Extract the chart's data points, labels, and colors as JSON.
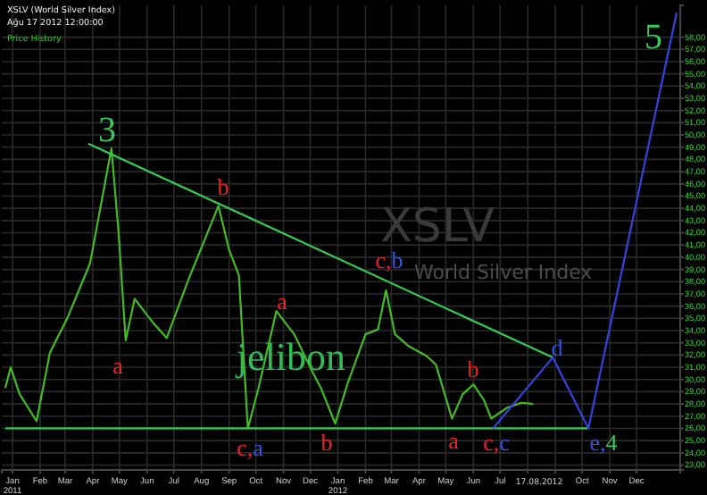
{
  "chart_data": {
    "type": "line",
    "title": "XSLV (World Silver Index)",
    "subtitle": "Ağu 17 2012 12:00:00",
    "annotations": [
      "Price History",
      "XSLV",
      "World Silver Index",
      "jelibon",
      "17.08.2012",
      "3",
      "b",
      "a",
      "c,a",
      "a",
      "b",
      "c,b",
      "a",
      "b",
      "c,c",
      "d",
      "e,4",
      "5"
    ],
    "series": [
      {
        "color": "#44bb22",
        "x": [
          "2010-12-24",
          "2010-12-30",
          "2011-01-09",
          "2011-01-28",
          "2011-02-12",
          "2011-03-04",
          "2011-03-29",
          "2011-04-22",
          "2011-04-30",
          "2011-05-08",
          "2011-05-18",
          "2011-06-07",
          "2011-06-23",
          "2011-07-17",
          "2011-08-20",
          "2011-09-01",
          "2011-09-12",
          "2011-09-22",
          "2011-10-04",
          "2011-10-24",
          "2011-11-13",
          "2011-12-03",
          "2011-12-13",
          "2011-12-29",
          "2012-01-12",
          "2012-02-01",
          "2012-02-15",
          "2012-02-24",
          "2012-03-05",
          "2012-03-21",
          "2012-04-10",
          "2012-04-20",
          "2012-05-08",
          "2012-05-20",
          "2012-06-01",
          "2012-06-13",
          "2012-06-21",
          "2012-07-09",
          "2012-07-25",
          "2012-08-07"
        ],
        "values": [
          29.3,
          31.0,
          28.8,
          26.6,
          32.2,
          35.1,
          39.5,
          48.9,
          42.0,
          33.2,
          36.6,
          34.7,
          33.4,
          38.1,
          44.2,
          40.6,
          38.5,
          26.0,
          29.3,
          35.6,
          33.7,
          30.7,
          29.3,
          26.4,
          29.7,
          33.7,
          34.1,
          37.3,
          33.7,
          32.7,
          31.9,
          31.2,
          26.8,
          28.8,
          29.6,
          28.3,
          26.8,
          27.7,
          28.1,
          28.0
        ]
      },
      {
        "color": "#33cc55",
        "x": [
          "2011-03-27",
          "2012-08-29"
        ],
        "values": [
          49.3,
          31.8
        ]
      },
      {
        "color": "#33cc55",
        "x": [
          "2010-12-24",
          "2012-10-08"
        ],
        "values": [
          26,
          26
        ]
      },
      {
        "color": "#3344dd",
        "x": [
          "2012-06-23",
          "2012-08-29",
          "2012-10-08",
          "2013-01-15"
        ],
        "values": [
          26,
          31.8,
          26,
          60
        ]
      }
    ],
    "xlim": [
      "2010-12-20",
      "2013-01-19"
    ],
    "xticks": [
      {
        "value": "2011-01-01",
        "label": "Jan\n2011"
      },
      {
        "value": "2011-02-01",
        "label": "Feb"
      },
      {
        "value": "2011-03-01",
        "label": "Mar"
      },
      {
        "value": "2011-04-01",
        "label": "Apr"
      },
      {
        "value": "2011-05-01",
        "label": "May"
      },
      {
        "value": "2011-06-01",
        "label": "Jun"
      },
      {
        "value": "2011-07-01",
        "label": "Jul"
      },
      {
        "value": "2011-08-01",
        "label": "Aug"
      },
      {
        "value": "2011-09-01",
        "label": "Sep"
      },
      {
        "value": "2011-10-01",
        "label": "Oct"
      },
      {
        "value": "2011-11-01",
        "label": "Nov"
      },
      {
        "value": "2011-12-01",
        "label": "Dec"
      },
      {
        "value": "2012-01-01",
        "label": "Jan\n2012"
      },
      {
        "value": "2012-02-01",
        "label": "Feb"
      },
      {
        "value": "2012-03-01",
        "label": "Mar"
      },
      {
        "value": "2012-04-01",
        "label": "Apr"
      },
      {
        "value": "2012-05-01",
        "label": "May"
      },
      {
        "value": "2012-06-01",
        "label": "Jun"
      },
      {
        "value": "2012-07-01",
        "label": "Jul"
      },
      {
        "value": "2012-08-01",
        "label": null
      },
      {
        "value": "2012-09-01",
        "label": null
      },
      {
        "value": "2012-10-01",
        "label": "Oct"
      },
      {
        "value": "2012-11-01",
        "label": "Nov"
      },
      {
        "value": "2012-12-01",
        "label": "Dec"
      }
    ],
    "ylim": [
      22.6,
      60.6
    ],
    "yticks": [
      {
        "value": 23,
        "label": "23,00"
      },
      {
        "value": 24,
        "label": "24,00"
      },
      {
        "value": 25,
        "label": "25,00"
      },
      {
        "value": 26,
        "label": "26,00"
      },
      {
        "value": 27,
        "label": "27,00"
      },
      {
        "value": 28,
        "label": "28,00"
      },
      {
        "value": 29,
        "label": "29,00"
      },
      {
        "value": 30,
        "label": "30,00"
      },
      {
        "value": 31,
        "label": "31,00"
      },
      {
        "value": 32,
        "label": "32,00"
      },
      {
        "value": 33,
        "label": "33,00"
      },
      {
        "value": 34,
        "label": "34,00"
      },
      {
        "value": 35,
        "label": "35,00"
      },
      {
        "value": 36,
        "label": "36,00"
      },
      {
        "value": 37,
        "label": "37,00"
      },
      {
        "value": 38,
        "label": "38,00"
      },
      {
        "value": 39,
        "label": "39,00"
      },
      {
        "value": 40,
        "label": "40,00"
      },
      {
        "value": 41,
        "label": "41,00"
      },
      {
        "value": 42,
        "label": "42,00"
      },
      {
        "value": 43,
        "label": "43,00"
      },
      {
        "value": 44,
        "label": "44,00"
      },
      {
        "value": 45,
        "label": "45,00"
      },
      {
        "value": 46,
        "label": "46,00"
      },
      {
        "value": 47,
        "label": "47,00"
      },
      {
        "value": 48,
        "label": "48,00"
      },
      {
        "value": 49,
        "label": "49,00"
      },
      {
        "value": 50,
        "label": "50,00"
      },
      {
        "value": 51,
        "label": "51,00"
      },
      {
        "value": 52,
        "label": "52,00"
      },
      {
        "value": 53,
        "label": "53,00"
      },
      {
        "value": 54,
        "label": "54,00"
      },
      {
        "value": 55,
        "label": "55,00"
      },
      {
        "value": 56,
        "label": "56,00"
      },
      {
        "value": 57,
        "label": "57,00"
      },
      {
        "value": 58,
        "label": "58,00"
      }
    ],
    "grid": true,
    "line_style": "solid"
  }
}
